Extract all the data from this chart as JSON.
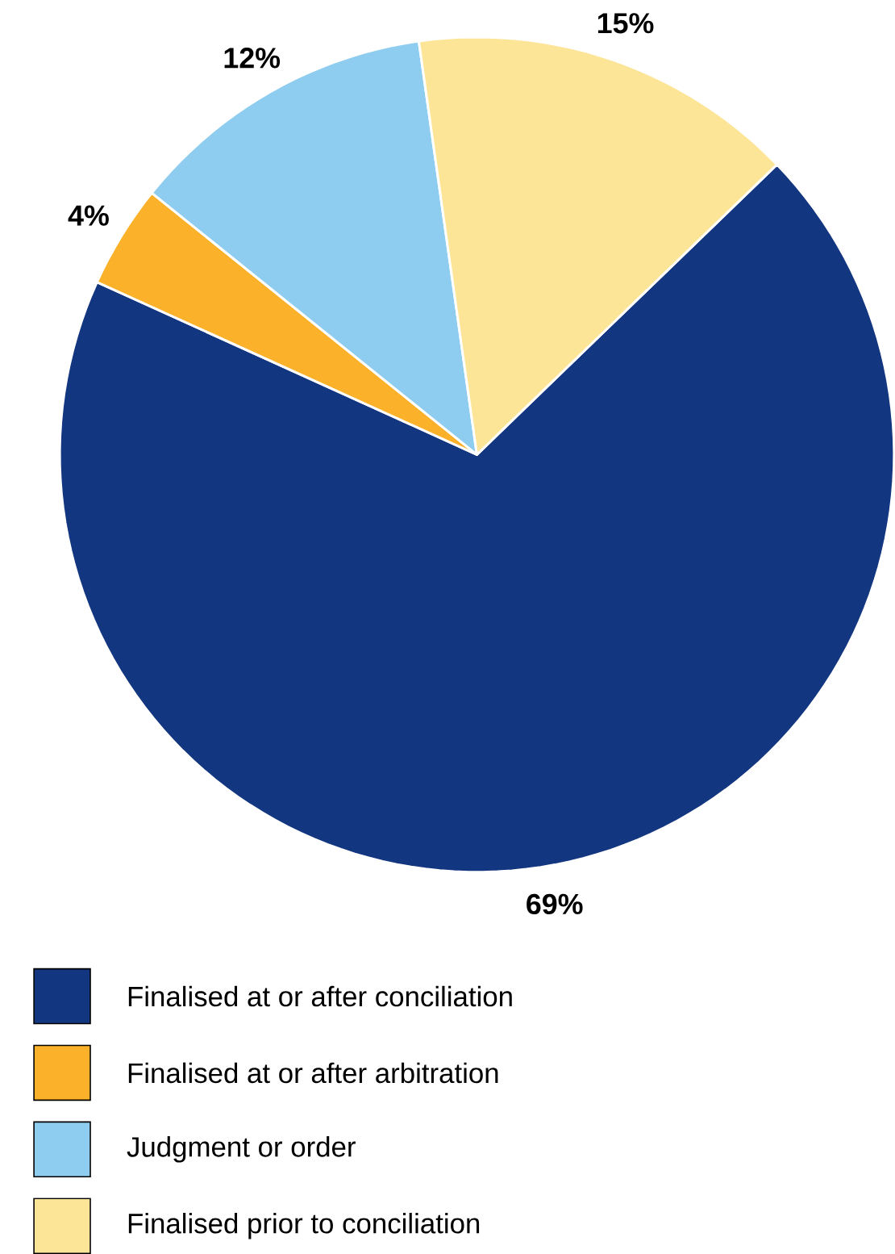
{
  "chart_data": {
    "type": "pie",
    "categories": [
      "Finalised at or after conciliation",
      "Finalised at or after arbitration",
      "Judgment or order",
      "Finalised prior to conciliation"
    ],
    "values": [
      69,
      4,
      12,
      15
    ],
    "colors": [
      "#133680",
      "#fbb12a",
      "#8ecdf0",
      "#fde598"
    ],
    "value_labels": [
      "69%",
      "4%",
      "12%",
      "15%"
    ],
    "legend": "bottom"
  }
}
